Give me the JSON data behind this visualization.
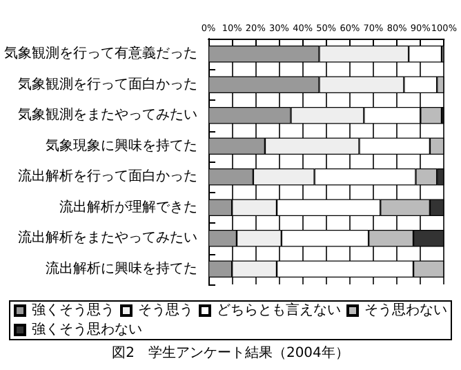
{
  "chart_data": {
    "type": "bar",
    "orientation": "horizontal",
    "stacked": true,
    "title": "図2　学生アンケート結果（2004年）",
    "categories": [
      "気象観測を行って有意義だった",
      "気象観測を行って面白かった",
      "気象観測をまたやってみたい",
      "気象現象に興味を持てた",
      "流出解析を行って面白かった",
      "流出解析が理解できた",
      "流出解析をまたやってみたい",
      "流出解析に興味を持てた"
    ],
    "series": [
      {
        "name": "強くそう思う",
        "color": "#999999",
        "values": [
          47,
          47,
          35,
          24,
          19,
          10,
          12,
          10
        ]
      },
      {
        "name": "そう思う",
        "color": "#eeeeee",
        "values": [
          38,
          36,
          31,
          40,
          26,
          19,
          19,
          19
        ]
      },
      {
        "name": "どちらとも言えない",
        "color": "#ffffff",
        "values": [
          14,
          14,
          24,
          30,
          43,
          44,
          37,
          58
        ]
      },
      {
        "name": "そう思わない",
        "color": "#bbbbbb",
        "values": [
          1,
          3,
          9,
          6,
          9,
          21,
          19,
          13
        ]
      },
      {
        "name": "強くそう思わない",
        "color": "#333333",
        "values": [
          null,
          null,
          1,
          null,
          3,
          6,
          13,
          null
        ]
      }
    ],
    "xlim": [
      0,
      100
    ],
    "xticks": [
      {
        "value": 0,
        "label": "0%"
      },
      {
        "value": 10,
        "label": "10%"
      },
      {
        "value": 20,
        "label": "20%"
      },
      {
        "value": 30,
        "label": "30%"
      },
      {
        "value": 40,
        "label": "40%"
      },
      {
        "value": 50,
        "label": "50%"
      },
      {
        "value": 60,
        "label": "60%"
      },
      {
        "value": 70,
        "label": "70%"
      },
      {
        "value": 80,
        "label": "80%"
      },
      {
        "value": 90,
        "label": "90%"
      },
      {
        "value": 100,
        "label": "100%"
      }
    ],
    "grid": "x",
    "legend": "bottom"
  }
}
